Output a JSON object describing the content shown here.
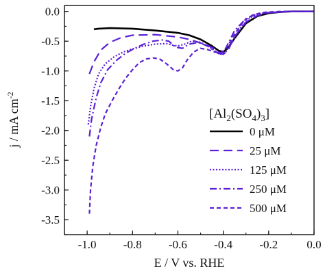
{
  "chart_data": {
    "type": "line",
    "title": "",
    "xlabel": "E / V vs. RHE",
    "ylabel": "j / mA cm",
    "ylabel_superscript": "-2",
    "xlim": [
      -1.1,
      0.0
    ],
    "ylim": [
      -3.75,
      0.1
    ],
    "x_ticks": [
      -1.0,
      -0.8,
      -0.6,
      -0.4,
      -0.2,
      0.0
    ],
    "x_tick_labels": [
      "-1.0",
      "-0.8",
      "-0.6",
      "-0.4",
      "-0.2",
      "0.0"
    ],
    "y_ticks": [
      0.0,
      -0.5,
      -1.0,
      -1.5,
      -2.0,
      -2.5,
      -3.0,
      -3.5
    ],
    "y_tick_labels": [
      "0.0",
      "-0.5",
      "-1.0",
      "-1.5",
      "-2.0",
      "-2.5",
      "-3.0",
      "-3.5"
    ],
    "grid": false,
    "legend": {
      "title_main": "[Al",
      "title_sub1": "2",
      "title_mid": "(SO",
      "title_sub2": "4",
      "title_end": ")",
      "title_sub3": "3",
      "title_close": "]",
      "position": "center-right"
    },
    "series": [
      {
        "name": "0 μM",
        "color": "#000000",
        "dash": "solid",
        "x": [
          -0.97,
          -0.95,
          -0.9,
          -0.8,
          -0.7,
          -0.6,
          -0.55,
          -0.5,
          -0.45,
          -0.42,
          -0.4,
          -0.38,
          -0.35,
          -0.3,
          -0.25,
          -0.2,
          -0.15,
          -0.1,
          0.0
        ],
        "y": [
          -0.3,
          -0.29,
          -0.28,
          -0.29,
          -0.32,
          -0.36,
          -0.4,
          -0.47,
          -0.58,
          -0.66,
          -0.68,
          -0.62,
          -0.45,
          -0.2,
          -0.08,
          -0.03,
          -0.01,
          0.0,
          0.0
        ]
      },
      {
        "name": "25 μM",
        "color": "#5a1fd6",
        "dash": "long-dash",
        "x": [
          -0.99,
          -0.97,
          -0.94,
          -0.9,
          -0.85,
          -0.8,
          -0.7,
          -0.6,
          -0.55,
          -0.5,
          -0.45,
          -0.42,
          -0.4,
          -0.38,
          -0.35,
          -0.3,
          -0.25,
          -0.2,
          -0.15,
          -0.1,
          0.0
        ],
        "y": [
          -1.05,
          -0.85,
          -0.65,
          -0.52,
          -0.44,
          -0.4,
          -0.39,
          -0.43,
          -0.47,
          -0.53,
          -0.6,
          -0.68,
          -0.72,
          -0.66,
          -0.42,
          -0.18,
          -0.07,
          -0.02,
          -0.01,
          0.0,
          0.0
        ]
      },
      {
        "name": "125 μM",
        "color": "#5a1fd6",
        "dash": "dotted",
        "x": [
          -0.995,
          -0.985,
          -0.97,
          -0.95,
          -0.92,
          -0.88,
          -0.84,
          -0.8,
          -0.75,
          -0.7,
          -0.65,
          -0.62,
          -0.6,
          -0.57,
          -0.54,
          -0.5,
          -0.46,
          -0.43,
          -0.41,
          -0.39,
          -0.36,
          -0.32,
          -0.28,
          -0.24,
          -0.2,
          -0.15,
          -0.1,
          0.0
        ],
        "y": [
          -1.9,
          -1.6,
          -1.3,
          -1.05,
          -0.88,
          -0.76,
          -0.68,
          -0.63,
          -0.58,
          -0.55,
          -0.54,
          -0.57,
          -0.58,
          -0.55,
          -0.5,
          -0.52,
          -0.6,
          -0.68,
          -0.72,
          -0.69,
          -0.5,
          -0.25,
          -0.1,
          -0.04,
          -0.02,
          -0.01,
          0.0,
          0.0
        ]
      },
      {
        "name": "250 μM",
        "color": "#5a1fd6",
        "dash": "dash-dot",
        "x": [
          -0.99,
          -0.98,
          -0.96,
          -0.94,
          -0.91,
          -0.87,
          -0.83,
          -0.79,
          -0.75,
          -0.71,
          -0.67,
          -0.64,
          -0.61,
          -0.58,
          -0.55,
          -0.51,
          -0.47,
          -0.44,
          -0.42,
          -0.4,
          -0.38,
          -0.35,
          -0.3,
          -0.25,
          -0.2,
          -0.15,
          -0.1,
          0.0
        ],
        "y": [
          -2.1,
          -1.8,
          -1.45,
          -1.2,
          -0.98,
          -0.82,
          -0.7,
          -0.62,
          -0.55,
          -0.5,
          -0.48,
          -0.5,
          -0.6,
          -0.62,
          -0.55,
          -0.52,
          -0.58,
          -0.66,
          -0.71,
          -0.7,
          -0.55,
          -0.32,
          -0.12,
          -0.04,
          -0.02,
          -0.01,
          0.0,
          0.0
        ]
      },
      {
        "name": "500 μM",
        "color": "#5a1fd6",
        "dash": "short-dash",
        "x": [
          -0.99,
          -0.985,
          -0.975,
          -0.96,
          -0.94,
          -0.92,
          -0.89,
          -0.86,
          -0.83,
          -0.8,
          -0.77,
          -0.74,
          -0.71,
          -0.68,
          -0.65,
          -0.62,
          -0.6,
          -0.58,
          -0.56,
          -0.53,
          -0.5,
          -0.47,
          -0.44,
          -0.41,
          -0.38,
          -0.35,
          -0.31,
          -0.27,
          -0.23,
          -0.2,
          -0.15,
          -0.1,
          0.0
        ],
        "y": [
          -3.4,
          -3.0,
          -2.6,
          -2.25,
          -1.95,
          -1.72,
          -1.5,
          -1.3,
          -1.12,
          -0.98,
          -0.86,
          -0.8,
          -0.78,
          -0.8,
          -0.88,
          -0.98,
          -1.0,
          -0.95,
          -0.82,
          -0.68,
          -0.62,
          -0.64,
          -0.68,
          -0.7,
          -0.58,
          -0.38,
          -0.16,
          -0.06,
          -0.02,
          -0.01,
          0.0,
          0.0,
          0.0
        ]
      }
    ]
  }
}
